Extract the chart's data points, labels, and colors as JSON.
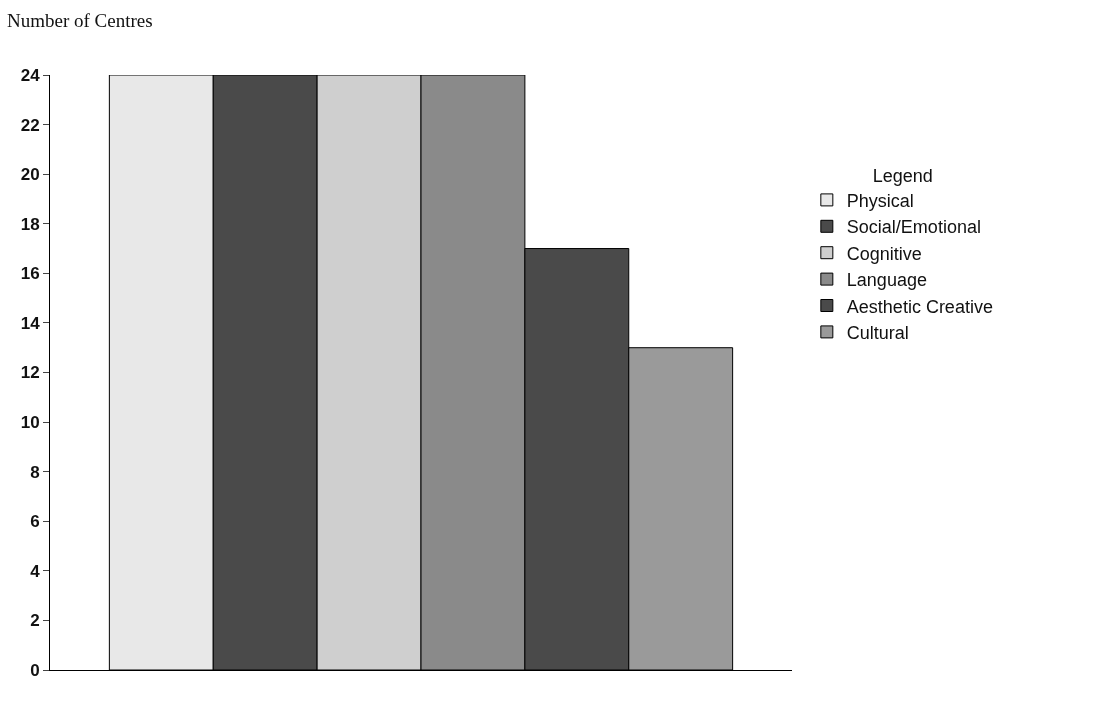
{
  "chart_data": {
    "type": "bar",
    "ylabel": "Number of Centres",
    "legend_title": "Legend",
    "categories": [
      null
    ],
    "series": [
      {
        "name": "Physical",
        "color": "#e8e8e8",
        "values": [
          24
        ]
      },
      {
        "name": "Social/Emotional",
        "color": "#4a4a4a",
        "values": [
          24
        ]
      },
      {
        "name": "Cognitive",
        "color": "#cfcfcf",
        "values": [
          24
        ]
      },
      {
        "name": "Language",
        "color": "#8a8a8a",
        "values": [
          24
        ]
      },
      {
        "name": "Aesthetic Creative",
        "color": "#4a4a4a",
        "values": [
          17
        ]
      },
      {
        "name": "Cultural",
        "color": "#9a9a9a",
        "values": [
          13
        ]
      }
    ],
    "ylim": [
      0,
      24
    ],
    "yticks": [
      0,
      2,
      4,
      6,
      8,
      10,
      12,
      14,
      16,
      18,
      20,
      22,
      24
    ],
    "grid": false,
    "legend": "right"
  }
}
